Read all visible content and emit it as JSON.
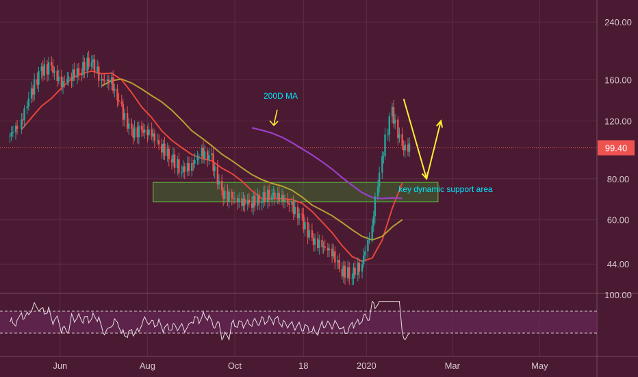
{
  "colors": {
    "background": "#4a1a32",
    "grid": "#5e2c45",
    "axis_text": "#d8c8d0",
    "candle_up": "#26a69a",
    "candle_down": "#ef5350",
    "ma_fast": "#e8463a",
    "ma_mid": "#b9a033",
    "ma_200": "#9b3fc6",
    "support_box": "#3f6b2f",
    "support_border": "#66cc44",
    "annotation": "#00e5ff",
    "arrow": "#ffee33",
    "price_line": "#ef5350",
    "price_badge": "#ef5350",
    "rsi_line": "#e8e0e4",
    "rsi_band": "#6b2a5a"
  },
  "chart_data": {
    "type": "candlestick",
    "price_scale": "log",
    "ylim": [
      36,
      280
    ],
    "y_ticks": [
      "240.00",
      "160.00",
      "120.00",
      "80.00",
      "60.00",
      "44.00"
    ],
    "x_ticks": [
      "Jun",
      "Aug",
      "Oct",
      "18",
      "2020",
      "Mar",
      "May"
    ],
    "last_price": "99.40",
    "candles_close_series": [
      {
        "date": "2019-04-27",
        "close": 108
      },
      {
        "date": "2019-05-05",
        "close": 118
      },
      {
        "date": "2019-05-12",
        "close": 145
      },
      {
        "date": "2019-05-19",
        "close": 170
      },
      {
        "date": "2019-05-26",
        "close": 175
      },
      {
        "date": "2019-06-02",
        "close": 155
      },
      {
        "date": "2019-06-09",
        "close": 165
      },
      {
        "date": "2019-06-16",
        "close": 172
      },
      {
        "date": "2019-06-23",
        "close": 185
      },
      {
        "date": "2019-06-30",
        "close": 160
      },
      {
        "date": "2019-07-07",
        "close": 158
      },
      {
        "date": "2019-07-14",
        "close": 130
      },
      {
        "date": "2019-07-21",
        "close": 110
      },
      {
        "date": "2019-07-28",
        "close": 112
      },
      {
        "date": "2019-08-04",
        "close": 110
      },
      {
        "date": "2019-08-11",
        "close": 100
      },
      {
        "date": "2019-08-18",
        "close": 93
      },
      {
        "date": "2019-08-25",
        "close": 85
      },
      {
        "date": "2019-09-01",
        "close": 88
      },
      {
        "date": "2019-09-08",
        "close": 96
      },
      {
        "date": "2019-09-15",
        "close": 92
      },
      {
        "date": "2019-09-22",
        "close": 72
      },
      {
        "date": "2019-09-29",
        "close": 70
      },
      {
        "date": "2019-10-06",
        "close": 68
      },
      {
        "date": "2019-10-13",
        "close": 68
      },
      {
        "date": "2019-10-20",
        "close": 70
      },
      {
        "date": "2019-10-27",
        "close": 72
      },
      {
        "date": "2019-11-03",
        "close": 70
      },
      {
        "date": "2019-11-10",
        "close": 66
      },
      {
        "date": "2019-11-17",
        "close": 60
      },
      {
        "date": "2019-11-24",
        "close": 52
      },
      {
        "date": "2019-12-01",
        "close": 50
      },
      {
        "date": "2019-12-08",
        "close": 48
      },
      {
        "date": "2019-12-15",
        "close": 42
      },
      {
        "date": "2019-12-22",
        "close": 41
      },
      {
        "date": "2019-12-29",
        "close": 44
      },
      {
        "date": "2020-01-05",
        "close": 56
      },
      {
        "date": "2020-01-12",
        "close": 90
      },
      {
        "date": "2020-01-19",
        "close": 128
      },
      {
        "date": "2020-01-26",
        "close": 99.4
      }
    ],
    "moving_averages": [
      {
        "name": "200D MA"
      }
    ],
    "support_zone": {
      "low": 68,
      "high": 78,
      "label": "key dynamic support area"
    },
    "projection_arrows": [
      {
        "from": {
          "date": "2020-01-27",
          "price": 140
        },
        "to": {
          "date": "2020-02-12",
          "price": 80
        }
      },
      {
        "from": {
          "date": "2020-02-12",
          "price": 80
        },
        "to": {
          "date": "2020-02-22",
          "price": 120
        }
      }
    ],
    "rsi": {
      "upper": 70,
      "lower": 30,
      "axis_label": "100.00"
    }
  },
  "labels": {
    "ma_label": "200D MA",
    "support_label": "key dynamic support area"
  }
}
